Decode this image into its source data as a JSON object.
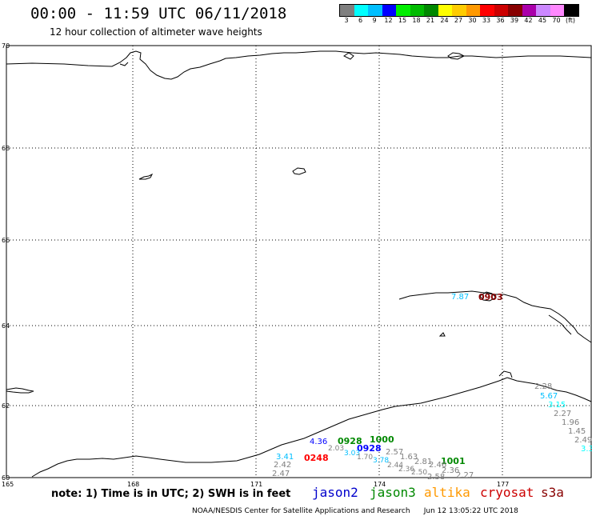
{
  "header": {
    "title": "00:00 - 11:59 UTC 06/11/2018",
    "subtitle": "12 hour collection of altimeter wave heights"
  },
  "colorbar": {
    "colors": [
      "#7f7f7f",
      "#00ffff",
      "#00bfff",
      "#0000ff",
      "#00ee00",
      "#00bb00",
      "#008800",
      "#ffff00",
      "#ffcc00",
      "#ff9900",
      "#ff0000",
      "#cc0000",
      "#880000",
      "#aa00aa",
      "#cc88ff",
      "#ff88ff",
      "#000000"
    ],
    "labels": [
      "3",
      "6",
      "9",
      "12",
      "15",
      "18",
      "21",
      "24",
      "27",
      "30",
      "33",
      "36",
      "39",
      "42",
      "45",
      "70",
      "(ft)"
    ]
  },
  "axes": {
    "latitudes": [
      "70",
      "68",
      "66",
      "64",
      "62",
      "60"
    ],
    "longitudes": [
      "165",
      "168",
      "171",
      "174",
      "177"
    ]
  },
  "observations": [
    {
      "text": "7.87",
      "color": "#00bfff"
    },
    {
      "text": "0903",
      "color": "#880000"
    },
    {
      "text": "2.28",
      "color": "#7f7f7f"
    },
    {
      "text": "5.67",
      "color": "#00bfff"
    },
    {
      "text": "3.15",
      "color": "#00ffff"
    },
    {
      "text": "2.27",
      "color": "#7f7f7f"
    },
    {
      "text": "1.96",
      "color": "#7f7f7f"
    },
    {
      "text": "1.45",
      "color": "#7f7f7f"
    },
    {
      "text": "2.49",
      "color": "#7f7f7f"
    },
    {
      "text": "3.3",
      "color": "#00ffff"
    },
    {
      "text": "1000",
      "color": "#008800"
    },
    {
      "text": "0928",
      "color": "#008800"
    },
    {
      "text": "0928",
      "color": "#0000ff"
    },
    {
      "text": "1001",
      "color": "#008800"
    },
    {
      "text": "0248",
      "color": "#ff0000"
    },
    {
      "text": "4.36",
      "color": "#0000ff"
    },
    {
      "text": "3.41",
      "color": "#00bfff"
    },
    {
      "text": "2.42",
      "color": "#7f7f7f"
    },
    {
      "text": "2.47",
      "color": "#7f7f7f"
    },
    {
      "text": "2.57",
      "color": "#7f7f7f"
    },
    {
      "text": "1.63",
      "color": "#7f7f7f"
    },
    {
      "text": "2.81",
      "color": "#7f7f7f"
    },
    {
      "text": "2.46",
      "color": "#7f7f7f"
    },
    {
      "text": "2.36",
      "color": "#7f7f7f"
    },
    {
      "text": "2.27",
      "color": "#7f7f7f"
    },
    {
      "text": "2.58",
      "color": "#7f7f7f"
    }
  ],
  "note": "note: 1) Time is in UTC; 2) SWH is in feet",
  "satellites": [
    {
      "name": "jason2",
      "color": "#0000cc"
    },
    {
      "name": "jason3",
      "color": "#008800"
    },
    {
      "name": "altika",
      "color": "#ff9900"
    },
    {
      "name": "cryosat",
      "color": "#cc0000"
    },
    {
      "name": "s3a",
      "color": "#880000"
    }
  ],
  "footer": {
    "credit": "NOAA/NESDIS Center for Satellite Applications and Research",
    "timestamp": "Jun 12 13:05:22 UTC 2018"
  }
}
